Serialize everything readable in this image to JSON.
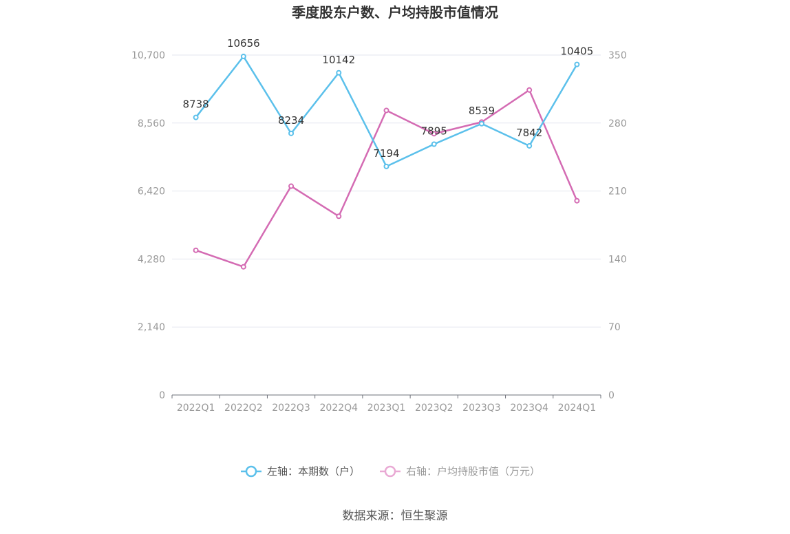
{
  "chart_data": {
    "type": "line",
    "title": "季度股东户数、户均持股市值情况",
    "categories": [
      "2022Q1",
      "2022Q2",
      "2022Q3",
      "2022Q4",
      "2023Q1",
      "2023Q2",
      "2023Q3",
      "2023Q4",
      "2024Q1"
    ],
    "series": [
      {
        "name": "左轴：本期数（户）",
        "axis": "left",
        "color": "#5bc0eb",
        "values": [
          8738,
          10656,
          8234,
          10142,
          7194,
          7895,
          8539,
          7842,
          10405
        ],
        "data_labels": [
          "8738",
          "10656",
          "8234",
          "10142",
          "7194",
          "7895",
          "8539",
          "7842",
          "10405"
        ]
      },
      {
        "name": "右轴：户均持股市值（万元）",
        "axis": "right",
        "color": "#d46bb3",
        "values": [
          149,
          132,
          215,
          184,
          293,
          269,
          281,
          314,
          200
        ]
      }
    ],
    "y_left": {
      "min": 0,
      "max": 10700,
      "ticks": [
        "0",
        "2,140",
        "4,280",
        "6,420",
        "8,560",
        "10,700"
      ]
    },
    "y_right": {
      "min": 0,
      "max": 350,
      "ticks": [
        "0",
        "70",
        "140",
        "210",
        "280",
        "350"
      ]
    },
    "grid": true,
    "legend_position": "bottom"
  },
  "source": "数据来源：恒生聚源"
}
